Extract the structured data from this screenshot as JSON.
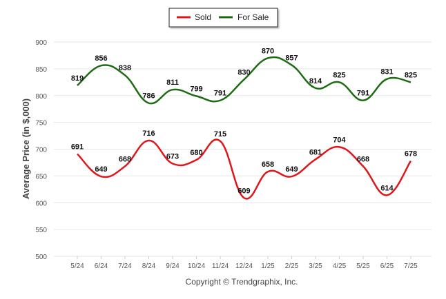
{
  "chart_data": {
    "type": "line",
    "categories": [
      "5/24",
      "6/24",
      "7/24",
      "8/24",
      "9/24",
      "10/24",
      "11/24",
      "12/24",
      "1/25",
      "2/25",
      "3/25",
      "4/25",
      "5/25",
      "6/25",
      "7/25"
    ],
    "series": [
      {
        "name": "Sold",
        "color": "#e0161b",
        "values": [
          691,
          649,
          668,
          716,
          673,
          680,
          715,
          609,
          658,
          649,
          681,
          704,
          668,
          614,
          678
        ]
      },
      {
        "name": "For Sale",
        "color": "#1d6b12",
        "values": [
          819,
          856,
          838,
          786,
          811,
          799,
          791,
          830,
          870,
          857,
          814,
          825,
          791,
          831,
          825
        ]
      }
    ],
    "ylabel": "Average Price (in $,000)",
    "xlabel": "",
    "ylim": [
      500,
      900
    ],
    "yticks": [
      500,
      550,
      600,
      650,
      700,
      750,
      800,
      850,
      900
    ],
    "grid": true,
    "legend_position": "top-center"
  },
  "footer": {
    "copyright": "Copyright © Trendgraphix, Inc."
  }
}
